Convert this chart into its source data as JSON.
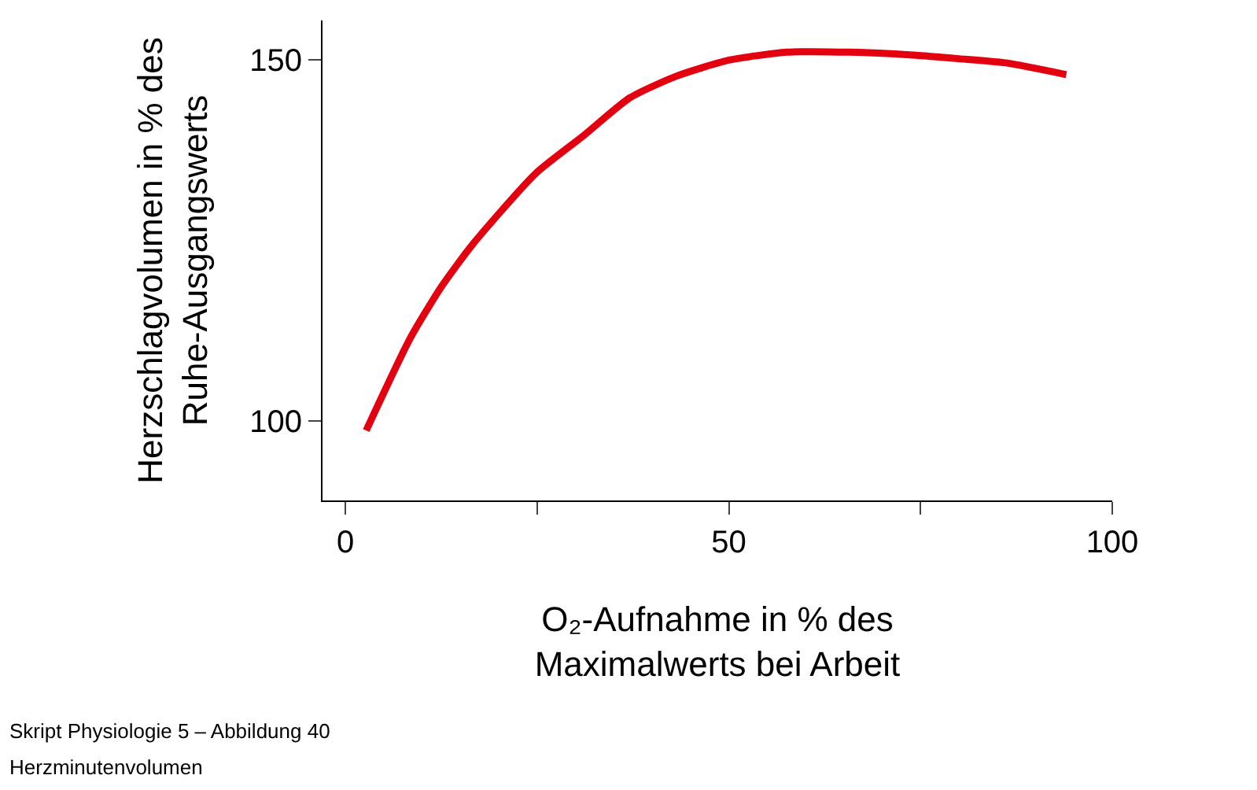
{
  "chart_data": {
    "type": "line",
    "xlabel": "O₂-Aufnahme in % des\nMaximalwerts bei Arbeit",
    "ylabel": "Herzschlagvolumen in % des\nRuhe-Ausgangswerts",
    "x": [
      2.7,
      8.4,
      12.5,
      16.6,
      24.8,
      31,
      37.1,
      43.2,
      50,
      57.6,
      65.8,
      74,
      80,
      86.3,
      94
    ],
    "series": [
      {
        "color": "#e3000f",
        "values": [
          98.7,
          111.4,
          118.6,
          124.5,
          134.3,
          139.5,
          144.8,
          147.8,
          150,
          151.1,
          151.1,
          150.7,
          150.2,
          149.6,
          148
        ]
      }
    ],
    "xlim": [
      -3,
      100
    ],
    "ylim": [
      89,
      155.5
    ],
    "xticks": [
      0,
      {
        "value": 25,
        "label": null
      },
      50,
      {
        "value": 75,
        "label": null
      },
      100
    ],
    "yticks": [
      100,
      150
    ],
    "legend": false,
    "marker": "none",
    "line_style": "solid",
    "annotations": [
      "Skript Physiologie 5 – Abbildung 40",
      "Herzminutenvolumen"
    ]
  }
}
